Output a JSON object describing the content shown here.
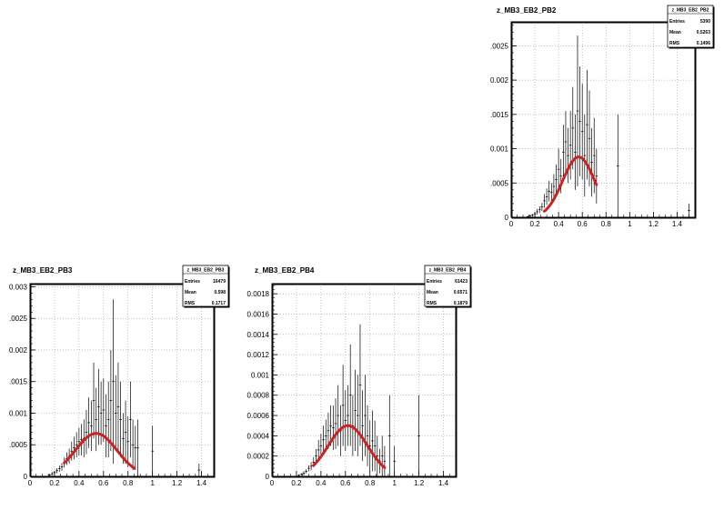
{
  "chart_data": [
    {
      "id": "pb2",
      "type": "scatter",
      "title": "z_MB3_EB2_PB2",
      "xlabel": "",
      "ylabel": "",
      "xlim": [
        0,
        1.55
      ],
      "ylim": [
        0,
        0.00285
      ],
      "grid": true,
      "x_ticks": [
        "0",
        "0.2",
        "0.4",
        "0.6",
        "0.8",
        "1",
        "1.2",
        "1.4"
      ],
      "x_tick_values": [
        0,
        0.2,
        0.4,
        0.6,
        0.8,
        1.0,
        1.2,
        1.4
      ],
      "y_ticks": [
        "0",
        ".0005",
        "0.001",
        ".0015",
        "0.002",
        ".0025"
      ],
      "y_tick_values": [
        0,
        0.0005,
        0.001,
        0.0015,
        0.002,
        0.0025
      ],
      "stats": {
        "name": "z_MB3_EB2_PB2",
        "rows": [
          [
            "Entries",
            "5390"
          ],
          [
            "Mean",
            "0.5263"
          ],
          [
            "RMS",
            "0.1496"
          ]
        ]
      },
      "histogram": [
        {
          "x": 0.14,
          "y": 1e-05,
          "err": 1e-05
        },
        {
          "x": 0.16,
          "y": 2e-05,
          "err": 2e-05
        },
        {
          "x": 0.18,
          "y": 3e-05,
          "err": 2e-05
        },
        {
          "x": 0.2,
          "y": 5e-05,
          "err": 3e-05
        },
        {
          "x": 0.22,
          "y": 8e-05,
          "err": 4e-05
        },
        {
          "x": 0.24,
          "y": 0.00011,
          "err": 5e-05
        },
        {
          "x": 0.26,
          "y": 0.00015,
          "err": 6e-05
        },
        {
          "x": 0.28,
          "y": 0.00024,
          "err": 0.0001
        },
        {
          "x": 0.3,
          "y": 0.0003,
          "err": 0.00012
        },
        {
          "x": 0.32,
          "y": 0.00038,
          "err": 0.00015
        },
        {
          "x": 0.34,
          "y": 0.00036,
          "err": 0.00014
        },
        {
          "x": 0.36,
          "y": 0.00045,
          "err": 0.00018
        },
        {
          "x": 0.38,
          "y": 0.00055,
          "err": 0.00022
        },
        {
          "x": 0.4,
          "y": 0.0007,
          "err": 0.0003
        },
        {
          "x": 0.42,
          "y": 0.0006,
          "err": 0.00025
        },
        {
          "x": 0.44,
          "y": 0.00095,
          "err": 0.0004
        },
        {
          "x": 0.46,
          "y": 0.0011,
          "err": 0.00045
        },
        {
          "x": 0.48,
          "y": 0.0009,
          "err": 0.0004
        },
        {
          "x": 0.5,
          "y": 0.00105,
          "err": 0.0005
        },
        {
          "x": 0.52,
          "y": 0.0013,
          "err": 0.0006
        },
        {
          "x": 0.54,
          "y": 0.00095,
          "err": 0.00055
        },
        {
          "x": 0.56,
          "y": 0.00155,
          "err": 0.0011
        },
        {
          "x": 0.58,
          "y": 0.0014,
          "err": 0.0008
        },
        {
          "x": 0.6,
          "y": 0.00125,
          "err": 0.0007
        },
        {
          "x": 0.62,
          "y": 0.0009,
          "err": 0.0006
        },
        {
          "x": 0.64,
          "y": 0.00135,
          "err": 0.0008
        },
        {
          "x": 0.66,
          "y": 0.00115,
          "err": 0.0007
        },
        {
          "x": 0.68,
          "y": 0.0008,
          "err": 0.0005
        },
        {
          "x": 0.7,
          "y": 0.0009,
          "err": 0.00055
        },
        {
          "x": 0.72,
          "y": 0.0006,
          "err": 0.0004
        },
        {
          "x": 0.9,
          "y": 0.00075,
          "err": 0.00075
        },
        {
          "x": 1.5,
          "y": 0.0001,
          "err": 0.0001
        }
      ],
      "fit": {
        "color": "#cc2222",
        "amplitude": 0.00088,
        "mean": 0.57,
        "sigma": 0.135,
        "range": [
          0.28,
          0.72
        ]
      }
    },
    {
      "id": "pb3",
      "type": "scatter",
      "title": "z_MB3_EB2_PB3",
      "xlabel": "",
      "ylabel": "",
      "xlim": [
        0,
        1.5
      ],
      "ylim": [
        0,
        0.00305
      ],
      "grid": true,
      "x_ticks": [
        "0",
        "0.2",
        "0.4",
        "0.6",
        "0.8",
        "1",
        "1.2",
        "1.4"
      ],
      "x_tick_values": [
        0,
        0.2,
        0.4,
        0.6,
        0.8,
        1.0,
        1.2,
        1.4
      ],
      "y_ticks": [
        "0",
        ".0005",
        "0.001",
        ".0015",
        "0.002",
        ".0025",
        "0.003"
      ],
      "y_tick_values": [
        0,
        0.0005,
        0.001,
        0.0015,
        0.002,
        0.0025,
        0.003
      ],
      "stats": {
        "name": "z_MB3_EB2_PB3",
        "rows": [
          [
            "Entries",
            "16479"
          ],
          [
            "Mean",
            "0.598"
          ],
          [
            "RMS",
            "0.1717"
          ]
        ]
      },
      "histogram": [
        {
          "x": 0.16,
          "y": 2e-05,
          "err": 2e-05
        },
        {
          "x": 0.18,
          "y": 4e-05,
          "err": 3e-05
        },
        {
          "x": 0.2,
          "y": 6e-05,
          "err": 3e-05
        },
        {
          "x": 0.22,
          "y": 9e-05,
          "err": 4e-05
        },
        {
          "x": 0.24,
          "y": 0.00012,
          "err": 5e-05
        },
        {
          "x": 0.26,
          "y": 0.00015,
          "err": 6e-05
        },
        {
          "x": 0.28,
          "y": 0.00022,
          "err": 8e-05
        },
        {
          "x": 0.3,
          "y": 0.00028,
          "err": 0.0001
        },
        {
          "x": 0.32,
          "y": 0.00032,
          "err": 0.00012
        },
        {
          "x": 0.34,
          "y": 0.0004,
          "err": 0.00015
        },
        {
          "x": 0.36,
          "y": 0.00045,
          "err": 0.00018
        },
        {
          "x": 0.38,
          "y": 0.0005,
          "err": 0.0002
        },
        {
          "x": 0.4,
          "y": 0.00055,
          "err": 0.00022
        },
        {
          "x": 0.42,
          "y": 0.00058,
          "err": 0.00025
        },
        {
          "x": 0.44,
          "y": 0.0006,
          "err": 0.0003
        },
        {
          "x": 0.46,
          "y": 0.0007,
          "err": 0.00035
        },
        {
          "x": 0.48,
          "y": 0.00085,
          "err": 0.0004
        },
        {
          "x": 0.5,
          "y": 0.0008,
          "err": 0.0004
        },
        {
          "x": 0.52,
          "y": 0.0012,
          "err": 0.0006
        },
        {
          "x": 0.54,
          "y": 0.0009,
          "err": 0.0005
        },
        {
          "x": 0.56,
          "y": 0.0011,
          "err": 0.0006
        },
        {
          "x": 0.58,
          "y": 0.001,
          "err": 0.0005
        },
        {
          "x": 0.6,
          "y": 0.00105,
          "err": 0.0005
        },
        {
          "x": 0.62,
          "y": 0.0008,
          "err": 0.0005
        },
        {
          "x": 0.64,
          "y": 0.0009,
          "err": 0.0006
        },
        {
          "x": 0.66,
          "y": 0.0012,
          "err": 0.0008
        },
        {
          "x": 0.68,
          "y": 0.0015,
          "err": 0.0013
        },
        {
          "x": 0.7,
          "y": 0.001,
          "err": 0.0006
        },
        {
          "x": 0.72,
          "y": 0.0011,
          "err": 0.0007
        },
        {
          "x": 0.74,
          "y": 0.0009,
          "err": 0.0006
        },
        {
          "x": 0.76,
          "y": 0.0006,
          "err": 0.0004
        },
        {
          "x": 0.78,
          "y": 0.0007,
          "err": 0.0005
        },
        {
          "x": 0.8,
          "y": 0.00055,
          "err": 0.0004
        },
        {
          "x": 0.82,
          "y": 0.0009,
          "err": 0.0006
        },
        {
          "x": 0.84,
          "y": 0.0005,
          "err": 0.0004
        },
        {
          "x": 0.86,
          "y": 0.00045,
          "err": 0.00035
        },
        {
          "x": 0.88,
          "y": 0.00045,
          "err": 0.00045
        },
        {
          "x": 1.0,
          "y": 0.0004,
          "err": 0.0004
        },
        {
          "x": 1.38,
          "y": 0.0001,
          "err": 0.0001
        }
      ],
      "fit": {
        "color": "#cc2222",
        "amplitude": 0.00068,
        "mean": 0.54,
        "sigma": 0.17,
        "range": [
          0.28,
          0.85
        ]
      }
    },
    {
      "id": "pb4",
      "type": "scatter",
      "title": "z_MB3_EB2_PB4",
      "xlabel": "",
      "ylabel": "",
      "xlim": [
        0,
        1.5
      ],
      "ylim": [
        0,
        0.0019
      ],
      "grid": true,
      "x_ticks": [
        "0",
        "0.2",
        "0.4",
        "0.6",
        "0.8",
        "1",
        "1.2",
        "1.4"
      ],
      "x_tick_values": [
        0,
        0.2,
        0.4,
        0.6,
        0.8,
        1.0,
        1.2,
        1.4
      ],
      "y_ticks": [
        "0",
        "0.0002",
        "0.0004",
        "0.0006",
        "0.0008",
        "0.001",
        "0.0012",
        "0.0014",
        "0.0016",
        "0.0018"
      ],
      "y_tick_values": [
        0,
        0.0002,
        0.0004,
        0.0006,
        0.0008,
        0.001,
        0.0012,
        0.0014,
        0.0016,
        0.0018
      ],
      "stats": {
        "name": "z_MB3_EB2_PB4",
        "rows": [
          [
            "Entries",
            "61423"
          ],
          [
            "Mean",
            "0.6571"
          ],
          [
            "RMS",
            "0.1879"
          ]
        ]
      },
      "histogram": [
        {
          "x": 0.22,
          "y": 1e-05,
          "err": 1e-05
        },
        {
          "x": 0.24,
          "y": 2e-05,
          "err": 1e-05
        },
        {
          "x": 0.26,
          "y": 3e-05,
          "err": 2e-05
        },
        {
          "x": 0.28,
          "y": 5e-05,
          "err": 2e-05
        },
        {
          "x": 0.3,
          "y": 8e-05,
          "err": 3e-05
        },
        {
          "x": 0.32,
          "y": 0.0001,
          "err": 4e-05
        },
        {
          "x": 0.34,
          "y": 0.00014,
          "err": 5e-05
        },
        {
          "x": 0.36,
          "y": 0.0002,
          "err": 7e-05
        },
        {
          "x": 0.38,
          "y": 0.00026,
          "err": 0.0001
        },
        {
          "x": 0.4,
          "y": 0.0003,
          "err": 0.00012
        },
        {
          "x": 0.42,
          "y": 0.00036,
          "err": 0.00014
        },
        {
          "x": 0.44,
          "y": 0.0004,
          "err": 0.00016
        },
        {
          "x": 0.46,
          "y": 0.00045,
          "err": 0.00018
        },
        {
          "x": 0.48,
          "y": 0.0005,
          "err": 0.0002
        },
        {
          "x": 0.5,
          "y": 0.00048,
          "err": 0.00022
        },
        {
          "x": 0.52,
          "y": 0.00052,
          "err": 0.00025
        },
        {
          "x": 0.54,
          "y": 0.0006,
          "err": 0.0003
        },
        {
          "x": 0.56,
          "y": 0.00045,
          "err": 0.00025
        },
        {
          "x": 0.58,
          "y": 0.0007,
          "err": 0.0004
        },
        {
          "x": 0.6,
          "y": 0.00055,
          "err": 0.0003
        },
        {
          "x": 0.62,
          "y": 0.0006,
          "err": 0.0003
        },
        {
          "x": 0.64,
          "y": 0.0008,
          "err": 0.0005
        },
        {
          "x": 0.66,
          "y": 0.0005,
          "err": 0.0003
        },
        {
          "x": 0.68,
          "y": 0.00065,
          "err": 0.0004
        },
        {
          "x": 0.7,
          "y": 0.0006,
          "err": 0.0004
        },
        {
          "x": 0.72,
          "y": 0.0009,
          "err": 0.0006
        },
        {
          "x": 0.74,
          "y": 0.0005,
          "err": 0.00035
        },
        {
          "x": 0.76,
          "y": 0.0006,
          "err": 0.0004
        },
        {
          "x": 0.78,
          "y": 0.0004,
          "err": 0.0003
        },
        {
          "x": 0.8,
          "y": 0.0003,
          "err": 0.00025
        },
        {
          "x": 0.82,
          "y": 0.00035,
          "err": 0.0003
        },
        {
          "x": 0.84,
          "y": 0.0003,
          "err": 0.00025
        },
        {
          "x": 0.86,
          "y": 0.0002,
          "err": 0.0002
        },
        {
          "x": 0.88,
          "y": 0.00015,
          "err": 0.00012
        },
        {
          "x": 0.9,
          "y": 0.0002,
          "err": 0.0002
        },
        {
          "x": 0.92,
          "y": 0.00015,
          "err": 0.00015
        },
        {
          "x": 0.96,
          "y": 0.0004,
          "err": 0.0004
        },
        {
          "x": 1.0,
          "y": 0.00015,
          "err": 0.00015
        },
        {
          "x": 1.2,
          "y": 0.0004,
          "err": 0.0004
        }
      ],
      "fit": {
        "color": "#cc2222",
        "amplitude": 0.0005,
        "mean": 0.62,
        "sigma": 0.16,
        "range": [
          0.34,
          0.92
        ]
      }
    }
  ]
}
